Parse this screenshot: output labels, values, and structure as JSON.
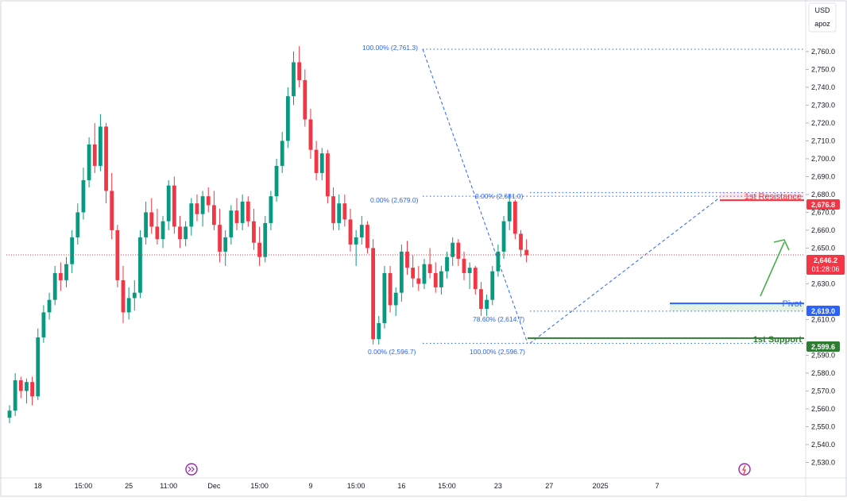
{
  "price_axis": {
    "currency": "USD",
    "account": "apoz",
    "ticks": [
      "2,760.0",
      "2,750.0",
      "2,740.0",
      "2,730.0",
      "2,720.0",
      "2,710.0",
      "2,700.0",
      "2,690.0",
      "2,680.0",
      "2,670.0",
      "2,660.0",
      "2,650.0",
      "2,630.0",
      "2,610.0",
      "2,590.0",
      "2,580.0",
      "2,570.0",
      "2,560.0",
      "2,550.0",
      "2,540.0",
      "2,530.0"
    ]
  },
  "time_axis": {
    "labels": [
      {
        "label": "18",
        "bar": 5
      },
      {
        "label": "15:00",
        "bar": 13
      },
      {
        "label": "25",
        "bar": 21
      },
      {
        "label": "11:00",
        "bar": 28
      },
      {
        "label": "Dec",
        "bar": 36
      },
      {
        "label": "15:00",
        "bar": 44
      },
      {
        "label": "9",
        "bar": 53
      },
      {
        "label": "15:00",
        "bar": 61
      },
      {
        "label": "16",
        "bar": 69
      },
      {
        "label": "15:00",
        "bar": 77
      },
      {
        "label": "23",
        "bar": 86
      },
      {
        "label": "27",
        "bar": 95
      },
      {
        "label": "2025",
        "bar": 104
      },
      {
        "label": "7",
        "bar": 114
      }
    ]
  },
  "badges": {
    "resistance": "2,676.8",
    "current_price": "2,646.2",
    "countdown": "01:28:06",
    "pivot": "2,619.0",
    "support": "2,599.6"
  },
  "annotations": {
    "resistance_label": "1st Resistance",
    "pivot_label": "Pivot",
    "support_label": "1st Support"
  },
  "fib_labels": {
    "top": "100.00% (2,761.3)",
    "mid_left": "0.00% (2,679.0)",
    "mid_right": "0.00% (2,681.0)",
    "retr_786": "78.60% (2,614.7)",
    "bottom_left": "0.00% (2,596.7)",
    "bottom_right": "100.00% (2,596.7)"
  },
  "colors": {
    "up": "#089981",
    "down": "#f23645",
    "fib": "#2962ff",
    "resistance": "#f23645",
    "pivot": "#2962ff",
    "support": "#43a047",
    "arrow": "#4caf50",
    "price_line": "#f23645"
  },
  "chart_data": {
    "type": "candlestick",
    "title": "",
    "xlabel": "",
    "ylabel": "",
    "ylim": [
      2530,
      2768
    ],
    "levels": {
      "first_resistance": 2676.8,
      "pivot": 2619.0,
      "first_support": 2599.6,
      "last_price": 2646.2
    },
    "fibonacci": [
      {
        "label": "100.00%",
        "price": 2761.3
      },
      {
        "label": "0.00%",
        "price": 2679.0
      },
      {
        "label": "0.00%",
        "price": 2681.0
      },
      {
        "label": "78.60%",
        "price": 2614.7
      },
      {
        "label": "0.00%",
        "price": 2596.7
      },
      {
        "label": "100.00%",
        "price": 2596.7
      }
    ],
    "candles": [
      [
        2555,
        2562,
        2552,
        2559
      ],
      [
        2559,
        2580,
        2556,
        2576
      ],
      [
        2576,
        2578,
        2566,
        2570
      ],
      [
        2570,
        2577,
        2563,
        2575
      ],
      [
        2575,
        2578,
        2562,
        2567
      ],
      [
        2567,
        2605,
        2565,
        2600
      ],
      [
        2600,
        2618,
        2597,
        2614
      ],
      [
        2614,
        2625,
        2610,
        2621
      ],
      [
        2621,
        2640,
        2618,
        2636
      ],
      [
        2636,
        2642,
        2626,
        2632
      ],
      [
        2632,
        2645,
        2628,
        2641
      ],
      [
        2641,
        2660,
        2636,
        2656
      ],
      [
        2656,
        2675,
        2652,
        2670
      ],
      [
        2670,
        2695,
        2666,
        2688
      ],
      [
        2688,
        2712,
        2684,
        2708
      ],
      [
        2708,
        2720,
        2692,
        2696
      ],
      [
        2696,
        2725,
        2693,
        2718
      ],
      [
        2718,
        2720,
        2675,
        2682
      ],
      [
        2682,
        2692,
        2655,
        2660
      ],
      [
        2660,
        2663,
        2628,
        2632
      ],
      [
        2632,
        2640,
        2608,
        2614
      ],
      [
        2614,
        2628,
        2610,
        2622
      ],
      [
        2622,
        2632,
        2615,
        2625
      ],
      [
        2625,
        2660,
        2622,
        2656
      ],
      [
        2656,
        2676,
        2652,
        2670
      ],
      [
        2670,
        2678,
        2658,
        2662
      ],
      [
        2662,
        2672,
        2652,
        2655
      ],
      [
        2655,
        2668,
        2650,
        2665
      ],
      [
        2665,
        2688,
        2660,
        2685
      ],
      [
        2685,
        2690,
        2658,
        2662
      ],
      [
        2662,
        2668,
        2650,
        2655
      ],
      [
        2655,
        2665,
        2651,
        2662
      ],
      [
        2662,
        2678,
        2657,
        2675
      ],
      [
        2675,
        2680,
        2665,
        2669
      ],
      [
        2669,
        2682,
        2662,
        2679
      ],
      [
        2679,
        2684,
        2670,
        2674
      ],
      [
        2674,
        2682,
        2660,
        2663
      ],
      [
        2663,
        2672,
        2642,
        2648
      ],
      [
        2648,
        2660,
        2640,
        2656
      ],
      [
        2656,
        2674,
        2652,
        2671
      ],
      [
        2671,
        2678,
        2660,
        2664
      ],
      [
        2664,
        2680,
        2660,
        2676
      ],
      [
        2676,
        2679,
        2662,
        2665
      ],
      [
        2665,
        2672,
        2649,
        2653
      ],
      [
        2653,
        2662,
        2640,
        2645
      ],
      [
        2645,
        2668,
        2642,
        2664
      ],
      [
        2664,
        2682,
        2660,
        2679
      ],
      [
        2679,
        2700,
        2676,
        2696
      ],
      [
        2696,
        2715,
        2692,
        2710
      ],
      [
        2710,
        2740,
        2706,
        2735
      ],
      [
        2735,
        2760,
        2730,
        2754
      ],
      [
        2754,
        2763,
        2740,
        2744
      ],
      [
        2744,
        2750,
        2718,
        2722
      ],
      [
        2722,
        2728,
        2700,
        2705
      ],
      [
        2705,
        2710,
        2688,
        2692
      ],
      [
        2692,
        2706,
        2688,
        2703
      ],
      [
        2703,
        2705,
        2675,
        2679
      ],
      [
        2679,
        2684,
        2660,
        2664
      ],
      [
        2664,
        2680,
        2660,
        2675
      ],
      [
        2675,
        2680,
        2662,
        2666
      ],
      [
        2666,
        2672,
        2648,
        2652
      ],
      [
        2652,
        2660,
        2640,
        2656
      ],
      [
        2656,
        2668,
        2652,
        2663
      ],
      [
        2663,
        2665,
        2647,
        2650
      ],
      [
        2650,
        2655,
        2596,
        2599
      ],
      [
        2599,
        2612,
        2596,
        2608
      ],
      [
        2608,
        2640,
        2605,
        2636
      ],
      [
        2636,
        2640,
        2614,
        2618
      ],
      [
        2618,
        2628,
        2612,
        2625
      ],
      [
        2625,
        2652,
        2620,
        2648
      ],
      [
        2648,
        2654,
        2635,
        2639
      ],
      [
        2639,
        2646,
        2628,
        2633
      ],
      [
        2633,
        2640,
        2626,
        2630
      ],
      [
        2630,
        2644,
        2627,
        2641
      ],
      [
        2641,
        2650,
        2633,
        2636
      ],
      [
        2636,
        2642,
        2625,
        2628
      ],
      [
        2628,
        2640,
        2624,
        2637
      ],
      [
        2637,
        2648,
        2633,
        2645
      ],
      [
        2645,
        2656,
        2640,
        2653
      ],
      [
        2653,
        2655,
        2640,
        2644
      ],
      [
        2644,
        2648,
        2632,
        2636
      ],
      [
        2636,
        2642,
        2627,
        2639
      ],
      [
        2639,
        2640,
        2624,
        2627
      ],
      [
        2627,
        2631,
        2612,
        2616
      ],
      [
        2616,
        2624,
        2612,
        2621
      ],
      [
        2621,
        2640,
        2618,
        2637
      ],
      [
        2637,
        2652,
        2634,
        2648
      ],
      [
        2648,
        2668,
        2644,
        2665
      ],
      [
        2665,
        2680,
        2660,
        2676
      ],
      [
        2676,
        2677,
        2655,
        2658
      ],
      [
        2658,
        2660,
        2645,
        2649
      ],
      [
        2649,
        2655,
        2642,
        2646
      ]
    ]
  }
}
